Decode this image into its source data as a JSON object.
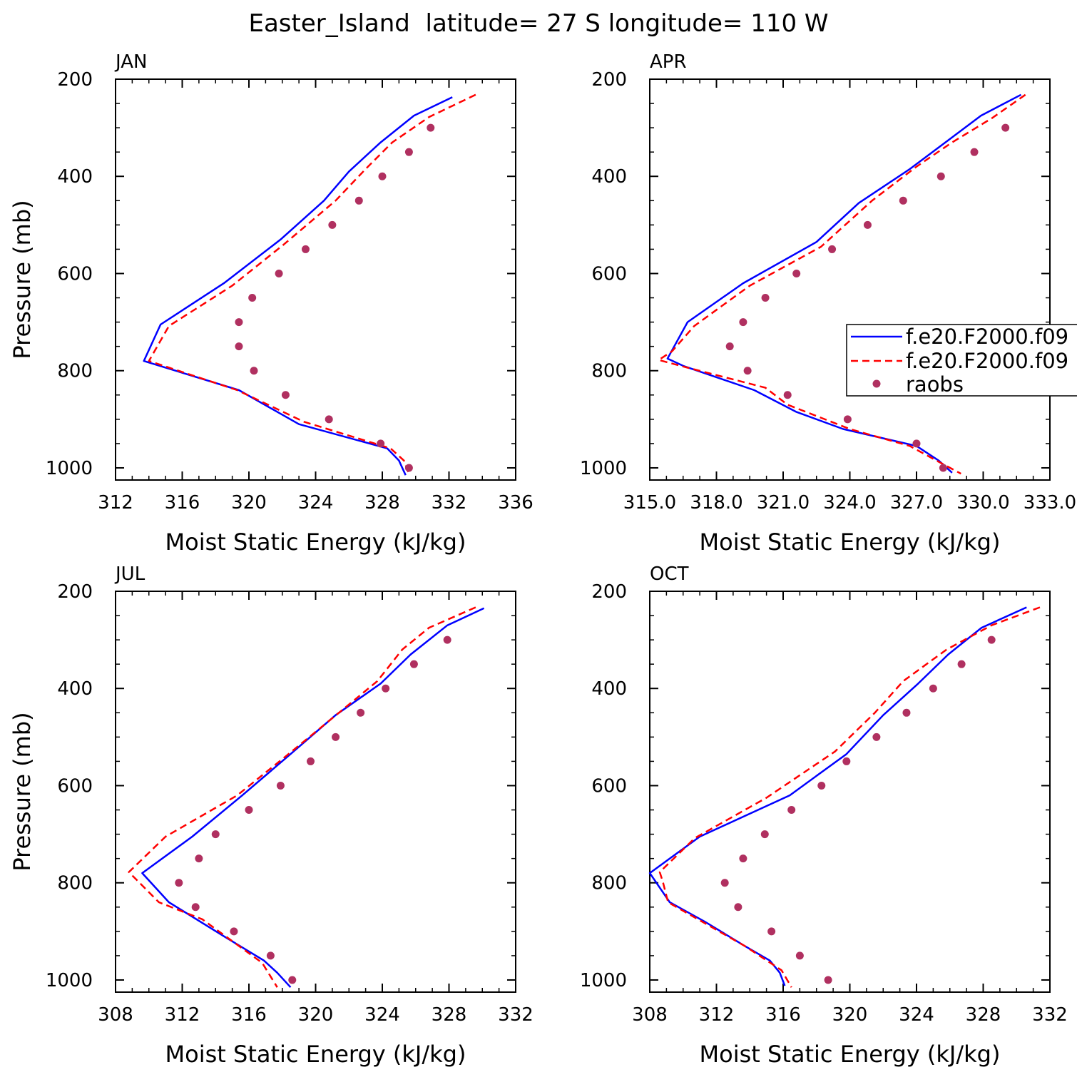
{
  "title": "Easter_Island  latitude= 27 S longitude= 110 W",
  "colors": {
    "model1": "#0000ff",
    "model2": "#ff0000",
    "raobs": "#b03060"
  },
  "legend": {
    "placement": "right of APR panel",
    "entries": [
      "f.e20.F2000.f09",
      "f.e20.F2000.f09",
      "raobs"
    ]
  },
  "chart_data": [
    {
      "type": "line",
      "panel_label": "JAN",
      "xlabel": "Moist Static Energy (kJ/kg)",
      "ylabel": "Pressure (mb)",
      "xlim": [
        312,
        336
      ],
      "xticks": [
        312,
        316,
        320,
        324,
        328,
        332,
        336
      ],
      "xticklabels": [
        "312",
        "316",
        "320",
        "324",
        "328",
        "332",
        "336"
      ],
      "ylim": [
        1025,
        200
      ],
      "yticks": [
        200,
        400,
        600,
        800,
        1000
      ],
      "yticklabels": [
        "200",
        "400",
        "600",
        "800",
        "1000"
      ],
      "series": [
        {
          "name": "f.e20.F2000.f09",
          "style": "solid",
          "pressure": [
            237,
            275,
            330,
            390,
            450,
            530,
            620,
            705,
            780,
            840,
            910,
            960,
            985,
            1015
          ],
          "values": [
            332.2,
            329.9,
            327.9,
            326.0,
            324.5,
            321.9,
            318.5,
            314.7,
            313.7,
            319.4,
            323.0,
            328.3,
            329.0,
            329.4
          ]
        },
        {
          "name": "f.e20.F2000.f09",
          "style": "dashed",
          "pressure": [
            232,
            278,
            330,
            385,
            450,
            540,
            625,
            708,
            780,
            840,
            905,
            960,
            985,
            1012
          ],
          "values": [
            333.6,
            330.8,
            328.6,
            327.0,
            325.2,
            322.1,
            319.0,
            315.2,
            314.0,
            319.3,
            323.3,
            328.5,
            329.3,
            329.6
          ]
        },
        {
          "name": "raobs",
          "style": "markers",
          "pressure": [
            300,
            350,
            400,
            450,
            500,
            550,
            600,
            650,
            700,
            750,
            800,
            850,
            900,
            950,
            1000
          ],
          "values": [
            330.9,
            329.6,
            328.0,
            326.6,
            325.0,
            323.4,
            321.8,
            320.2,
            319.4,
            319.4,
            320.3,
            322.2,
            324.8,
            327.9,
            329.6
          ]
        }
      ]
    },
    {
      "type": "line",
      "panel_label": "APR",
      "xlabel": "Moist Static Energy (kJ/kg)",
      "ylabel": "",
      "xlim": [
        315.0,
        333.0
      ],
      "xticks": [
        315,
        318,
        321,
        324,
        327,
        330,
        333
      ],
      "xticklabels": [
        "315.0",
        "318.0",
        "321.0",
        "324.0",
        "327.0",
        "330.0",
        "333.0"
      ],
      "ylim": [
        1025,
        200
      ],
      "yticks": [
        200,
        400,
        600,
        800,
        1000
      ],
      "yticklabels": [
        "200",
        "400",
        "600",
        "800",
        "1000"
      ],
      "series": [
        {
          "name": "f.e20.F2000.f09",
          "style": "solid",
          "pressure": [
            232,
            275,
            330,
            385,
            455,
            535,
            620,
            700,
            775,
            790,
            840,
            885,
            920,
            955,
            985,
            1010
          ],
          "values": [
            331.7,
            329.9,
            328.3,
            326.7,
            324.4,
            322.5,
            319.2,
            316.7,
            315.8,
            316.5,
            319.7,
            321.6,
            323.7,
            327.0,
            328.0,
            328.6
          ]
        },
        {
          "name": "f.e20.F2000.f09",
          "style": "dashed",
          "pressure": [
            232,
            280,
            330,
            380,
            450,
            545,
            625,
            708,
            760,
            778,
            795,
            835,
            870,
            920,
            955,
            985,
            1012
          ],
          "values": [
            331.9,
            330.4,
            328.6,
            327.0,
            325.0,
            322.7,
            319.5,
            317.0,
            316.0,
            315.4,
            316.8,
            320.2,
            321.2,
            324.0,
            326.7,
            327.9,
            329.0
          ]
        },
        {
          "name": "raobs",
          "style": "markers",
          "pressure": [
            300,
            350,
            400,
            450,
            500,
            550,
            600,
            650,
            700,
            750,
            800,
            850,
            900,
            950,
            1000
          ],
          "values": [
            331.0,
            329.6,
            328.1,
            326.4,
            324.8,
            323.2,
            321.6,
            320.2,
            319.2,
            318.6,
            319.4,
            321.2,
            323.9,
            327.0,
            328.2
          ]
        }
      ]
    },
    {
      "type": "line",
      "panel_label": "JUL",
      "xlabel": "Moist Static Energy (kJ/kg)",
      "ylabel": "Pressure (mb)",
      "xlim": [
        308,
        332
      ],
      "xticks": [
        308,
        312,
        316,
        320,
        324,
        328,
        332
      ],
      "xticklabels": [
        "308",
        "312",
        "316",
        "320",
        "324",
        "328",
        "332"
      ],
      "ylim": [
        1025,
        200
      ],
      "yticks": [
        200,
        400,
        600,
        800,
        1000
      ],
      "yticklabels": [
        "200",
        "400",
        "600",
        "800",
        "1000"
      ],
      "series": [
        {
          "name": "f.e20.F2000.f09",
          "style": "solid",
          "pressure": [
            235,
            270,
            330,
            390,
            455,
            535,
            620,
            705,
            780,
            840,
            910,
            960,
            985,
            1015
          ],
          "values": [
            330.1,
            327.9,
            325.7,
            323.9,
            321.2,
            318.5,
            315.6,
            312.6,
            309.6,
            311.2,
            314.5,
            316.9,
            317.7,
            318.5
          ]
        },
        {
          "name": "f.e20.F2000.f09",
          "style": "dashed",
          "pressure": [
            233,
            275,
            320,
            385,
            450,
            540,
            620,
            705,
            778,
            840,
            875,
            920,
            965,
            1015
          ],
          "values": [
            329.6,
            326.8,
            325.2,
            323.7,
            321.4,
            318.2,
            315.3,
            311.0,
            308.8,
            310.6,
            313.2,
            315.0,
            316.8,
            317.7
          ]
        },
        {
          "name": "raobs",
          "style": "markers",
          "pressure": [
            300,
            350,
            400,
            450,
            500,
            550,
            600,
            650,
            700,
            750,
            800,
            850,
            900,
            950,
            1000
          ],
          "values": [
            327.9,
            325.9,
            324.2,
            322.7,
            321.2,
            319.7,
            317.9,
            316.0,
            314.0,
            313.0,
            311.8,
            312.8,
            315.1,
            317.3,
            318.6
          ]
        }
      ]
    },
    {
      "type": "line",
      "panel_label": "OCT",
      "xlabel": "Moist Static Energy (kJ/kg)",
      "ylabel": "",
      "xlim": [
        308,
        332
      ],
      "xticks": [
        308,
        312,
        316,
        320,
        324,
        328,
        332
      ],
      "xticklabels": [
        "308",
        "312",
        "316",
        "320",
        "324",
        "328",
        "332"
      ],
      "ylim": [
        1025,
        200
      ],
      "yticks": [
        200,
        400,
        600,
        800,
        1000
      ],
      "yticklabels": [
        "200",
        "400",
        "600",
        "800",
        "1000"
      ],
      "series": [
        {
          "name": "f.e20.F2000.f09",
          "style": "solid",
          "pressure": [
            233,
            275,
            330,
            390,
            455,
            535,
            620,
            705,
            780,
            840,
            880,
            930,
            960,
            985,
            1012
          ],
          "values": [
            330.6,
            327.9,
            325.9,
            324.1,
            322.0,
            319.8,
            316.4,
            311.0,
            308.0,
            309.2,
            311.3,
            313.7,
            315.2,
            315.8,
            316.1
          ]
        },
        {
          "name": "f.e20.F2000.f09",
          "style": "dashed",
          "pressure": [
            233,
            270,
            320,
            385,
            450,
            530,
            625,
            708,
            778,
            800,
            840,
            930,
            980,
            1015
          ],
          "values": [
            331.4,
            328.5,
            325.8,
            323.2,
            321.5,
            319.1,
            315.0,
            310.7,
            308.6,
            308.8,
            309.1,
            313.7,
            315.9,
            316.5
          ]
        },
        {
          "name": "raobs",
          "style": "markers",
          "pressure": [
            300,
            350,
            400,
            450,
            500,
            550,
            600,
            650,
            700,
            750,
            800,
            850,
            900,
            950,
            1000
          ],
          "values": [
            328.5,
            326.7,
            325.0,
            323.4,
            321.6,
            319.8,
            318.3,
            316.5,
            314.9,
            313.6,
            312.5,
            313.3,
            315.3,
            317.0,
            318.7
          ]
        }
      ]
    }
  ]
}
